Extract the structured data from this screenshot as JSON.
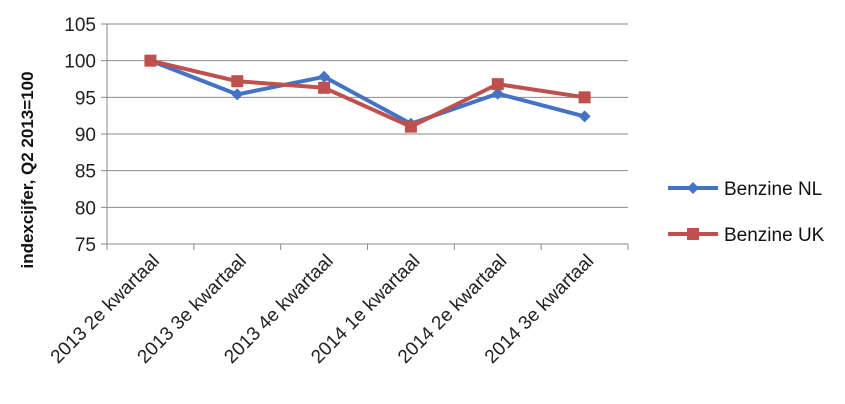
{
  "chart_data": {
    "type": "line",
    "categories": [
      "2013 2e kwartaal",
      "2013 3e kwartaal",
      "2013 4e kwartaal",
      "2014 1e kwartaal",
      "2014 2e kwartaal",
      "2014 3e kwartaal"
    ],
    "series": [
      {
        "name": "Benzine NL",
        "color": "#4472C4",
        "marker": "diamond",
        "values": [
          100.0,
          95.4,
          97.8,
          91.4,
          95.5,
          92.4
        ]
      },
      {
        "name": "Benzine UK",
        "color": "#C0504D",
        "marker": "square",
        "values": [
          100.0,
          97.2,
          96.3,
          91.0,
          96.8,
          95.0
        ]
      }
    ],
    "ylabel": "indexcijfer, Q2 2013=100",
    "ylim": [
      75,
      105
    ],
    "yticks": [
      75,
      80,
      85,
      90,
      95,
      100,
      105
    ],
    "grid": true,
    "legend": "right"
  }
}
